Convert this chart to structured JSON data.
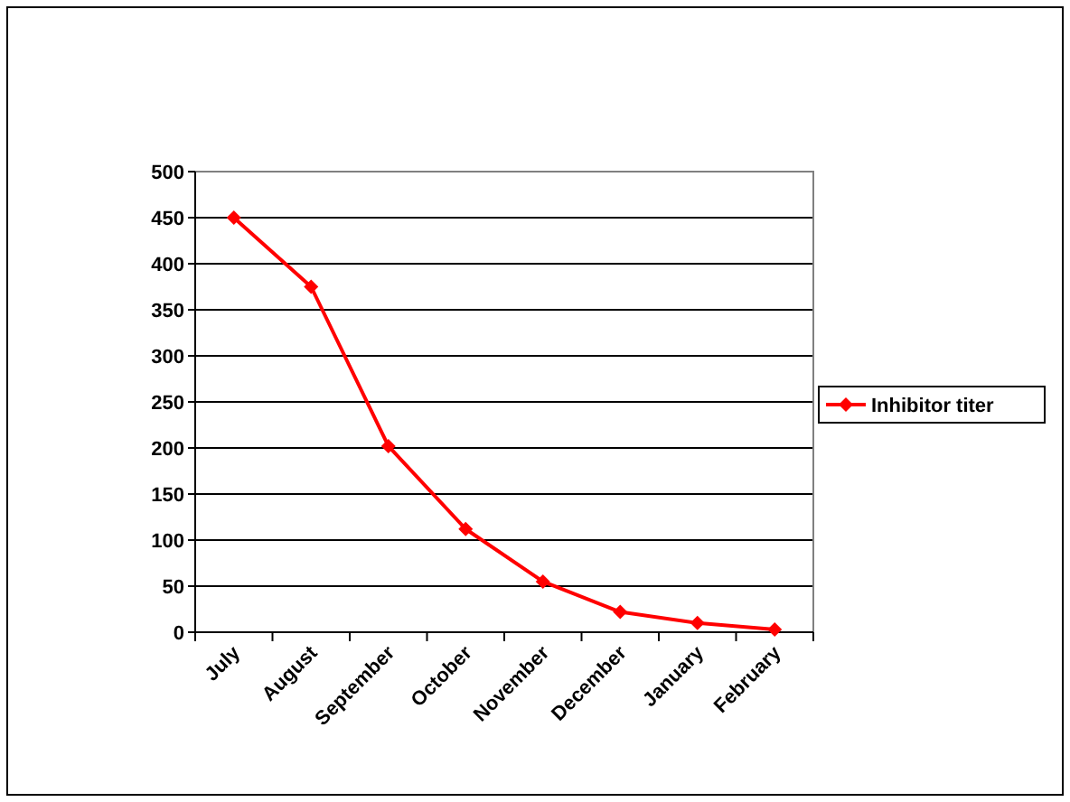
{
  "chart_data": {
    "type": "line",
    "categories": [
      "July",
      "August",
      "September",
      "October",
      "November",
      "December",
      "January",
      "February"
    ],
    "series": [
      {
        "name": "Inhibitor titer",
        "color": "#ff0000",
        "values": [
          450,
          375,
          202,
          112,
          55,
          22,
          10,
          3
        ]
      }
    ],
    "ylim": [
      0,
      500
    ],
    "yticks": [
      0,
      50,
      100,
      150,
      200,
      250,
      300,
      350,
      400,
      450,
      500
    ],
    "grid": "y",
    "legend": "right",
    "marker": "diamond",
    "line_style": "solid"
  }
}
